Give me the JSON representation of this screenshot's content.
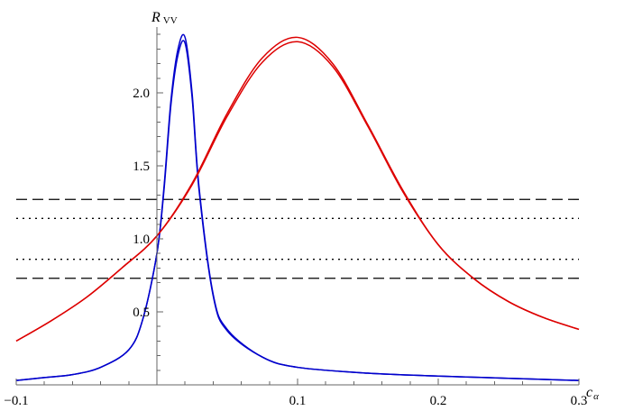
{
  "chart_data": {
    "type": "line",
    "xlabel": "c",
    "xlabel_subscript": "α",
    "ylabel": "R",
    "ylabel_subscript": "VV",
    "xlim": [
      -0.1,
      0.3
    ],
    "ylim": [
      0,
      2.45
    ],
    "xticks": [
      {
        "value": -0.1,
        "label": "−0.1"
      },
      {
        "value": 0.1,
        "label": "0.1"
      },
      {
        "value": 0.2,
        "label": "0.2"
      },
      {
        "value": 0.3,
        "label": "0.3"
      }
    ],
    "yticks": [
      {
        "value": 0.5,
        "label": "0.5"
      },
      {
        "value": 1.0,
        "label": "1.0"
      },
      {
        "value": 1.5,
        "label": "1.5"
      },
      {
        "value": 2.0,
        "label": "2.0"
      }
    ],
    "grid": false,
    "legend": "none",
    "series": [
      {
        "color": "#0000cc",
        "style": "solid",
        "x": [
          -0.1,
          -0.08,
          -0.06,
          -0.04,
          -0.02,
          -0.01,
          0.0,
          0.005,
          0.01,
          0.015,
          0.02,
          0.025,
          0.03,
          0.04,
          0.05,
          0.075,
          0.1,
          0.15,
          0.2,
          0.25,
          0.3
        ],
        "y": [
          0.03,
          0.05,
          0.07,
          0.12,
          0.24,
          0.45,
          0.9,
          1.35,
          1.95,
          2.3,
          2.38,
          2.0,
          1.35,
          0.62,
          0.38,
          0.19,
          0.12,
          0.08,
          0.06,
          0.045,
          0.03
        ]
      },
      {
        "color": "#0000cc",
        "style": "solid",
        "x": [
          -0.1,
          -0.08,
          -0.06,
          -0.04,
          -0.02,
          -0.01,
          0.0,
          0.005,
          0.01,
          0.015,
          0.02,
          0.025,
          0.03,
          0.04,
          0.05,
          0.075,
          0.1,
          0.15,
          0.2,
          0.25,
          0.3
        ],
        "y": [
          0.03,
          0.05,
          0.07,
          0.12,
          0.24,
          0.45,
          0.9,
          1.33,
          1.92,
          2.26,
          2.34,
          1.97,
          1.33,
          0.61,
          0.37,
          0.19,
          0.12,
          0.08,
          0.06,
          0.045,
          0.03
        ]
      },
      {
        "color": "#dd0000",
        "style": "solid",
        "x": [
          -0.1,
          -0.075,
          -0.05,
          -0.025,
          0.0,
          0.025,
          0.05,
          0.075,
          0.1,
          0.125,
          0.15,
          0.175,
          0.2,
          0.225,
          0.25,
          0.275,
          0.3
        ],
        "y": [
          0.3,
          0.44,
          0.6,
          0.8,
          1.02,
          1.38,
          1.86,
          2.24,
          2.38,
          2.2,
          1.78,
          1.33,
          0.96,
          0.73,
          0.57,
          0.46,
          0.38
        ]
      },
      {
        "color": "#dd0000",
        "style": "solid",
        "x": [
          -0.1,
          -0.075,
          -0.05,
          -0.025,
          0.0,
          0.025,
          0.05,
          0.075,
          0.1,
          0.125,
          0.15,
          0.175,
          0.2,
          0.225,
          0.25,
          0.275,
          0.3
        ],
        "y": [
          0.3,
          0.44,
          0.6,
          0.8,
          1.02,
          1.37,
          1.84,
          2.21,
          2.35,
          2.18,
          1.77,
          1.32,
          0.96,
          0.73,
          0.57,
          0.46,
          0.38
        ]
      }
    ],
    "reference_lines": [
      {
        "y": 1.27,
        "style": "dashed",
        "color": "#000000"
      },
      {
        "y": 1.14,
        "style": "dotted",
        "color": "#000000"
      },
      {
        "y": 0.86,
        "style": "dotted",
        "color": "#000000"
      },
      {
        "y": 0.73,
        "style": "dashed",
        "color": "#000000"
      }
    ]
  }
}
